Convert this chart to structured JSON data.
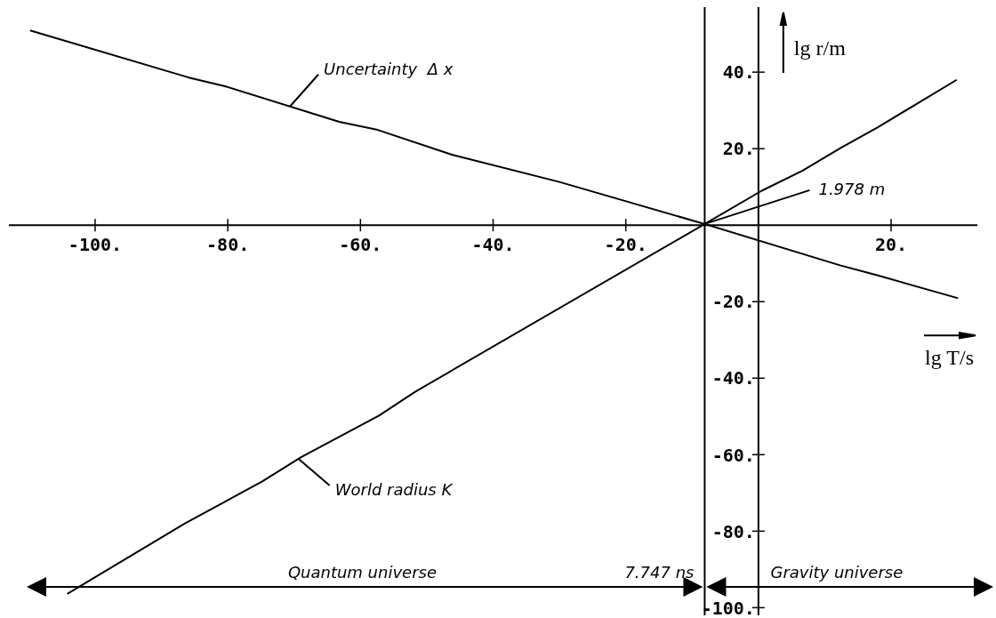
{
  "chart_data": {
    "type": "line",
    "xlabel": "lg T/s",
    "ylabel": "lg r/m",
    "xlim": [
      -113,
      33
    ],
    "ylim": [
      -102,
      57
    ],
    "xticks": [
      {
        "value": -100,
        "label": "-100."
      },
      {
        "value": -80,
        "label": "-80."
      },
      {
        "value": -60,
        "label": "-60."
      },
      {
        "value": -40,
        "label": "-40."
      },
      {
        "value": -20,
        "label": "-20."
      },
      {
        "value": 20,
        "label": "20."
      }
    ],
    "yticks": [
      {
        "value": 40,
        "label": "40."
      },
      {
        "value": 20,
        "label": "20."
      },
      {
        "value": -20,
        "label": "-20."
      },
      {
        "value": -40,
        "label": "-40."
      },
      {
        "value": -60,
        "label": "-60."
      },
      {
        "value": -80,
        "label": "-80."
      },
      {
        "value": -100,
        "label": "-100."
      }
    ],
    "series": [
      {
        "name": "Uncertainty  Δ x",
        "color": "#000000",
        "x": [
          -109.8,
          -85.9,
          -80.4,
          -63.2,
          -57.4,
          -46.2,
          -30,
          -8.1,
          12.3,
          17.9,
          30.1
        ],
        "values": [
          50.9,
          38.6,
          36.3,
          27,
          24.9,
          18.4,
          11.3,
          0.3,
          -10.5,
          -13.1,
          -19.1
        ]
      },
      {
        "name": "World radius K",
        "color": "#000000",
        "x": [
          -104.2,
          -86.4,
          -74.8,
          -69,
          -57.2,
          -51.7,
          -8.1,
          0.5,
          6.6,
          12.4,
          18,
          29.9
        ],
        "values": [
          -96.4,
          -77.9,
          -67,
          -60.7,
          -49.8,
          -43.5,
          0.3,
          9,
          14.2,
          20.2,
          25.6,
          38
        ]
      }
    ],
    "ref_lines": [
      {
        "axis": "x",
        "value": -8.1
      }
    ],
    "annotations": [
      {
        "text": "1.978 m",
        "x": -8.1,
        "y": 0.3
      },
      {
        "text": "7.747 ns",
        "x": -8.1,
        "y": -95
      },
      "Quantum universe",
      "Gravity universe"
    ],
    "legend": false,
    "marker": "none",
    "line_style": "solid"
  }
}
